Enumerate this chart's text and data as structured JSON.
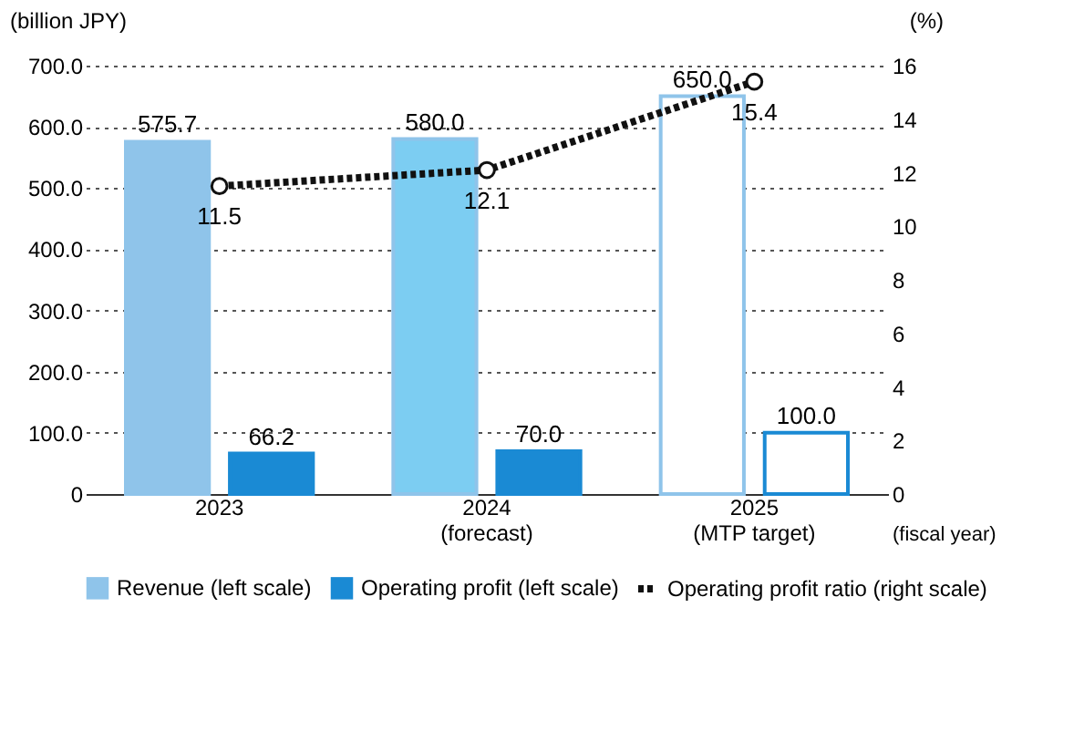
{
  "chart_data": {
    "type": "bar",
    "ylabel": "(billion JPY)",
    "y2label": "(%)",
    "xlabel": "(fiscal year)",
    "categories": [
      "2023",
      "2024\n(forecast)",
      "2025\n(MTP target)"
    ],
    "series": [
      {
        "name": "Revenue (left scale)",
        "color": "#8fc4ea",
        "colors": [
          "#8fc4ea",
          "#7ccdf2",
          "#ffffff"
        ],
        "values": [
          575.7,
          580.0,
          650.0
        ],
        "value_labels": [
          "575.7",
          "580.0",
          "650.0"
        ]
      },
      {
        "name": "Operating profit (left scale)",
        "color": "#1a8ad4",
        "colors": [
          "#1a8ad4",
          "#1a8ad4",
          "#ffffff"
        ],
        "values": [
          66.2,
          70.0,
          100.0
        ],
        "value_labels": [
          "66.2",
          "70.0",
          "100.0"
        ]
      },
      {
        "name": "Operating profit ratio (right scale)",
        "type": "line",
        "axis": "y2",
        "color": "#111111",
        "marker": "circle",
        "line_style": "dotted",
        "values": [
          11.5,
          12.1,
          15.4
        ],
        "value_labels": [
          "11.5",
          "12.1",
          "15.4"
        ]
      }
    ],
    "ylim": [
      0,
      700
    ],
    "yticks": [
      0,
      {
        "value": 100,
        "label": "100.0"
      },
      {
        "value": 200,
        "label": "200.0"
      },
      {
        "value": 300,
        "label": "300.0"
      },
      {
        "value": 400,
        "label": "400.0"
      },
      {
        "value": 500,
        "label": "500.0"
      },
      {
        "value": 600,
        "label": "600.0"
      },
      {
        "value": 700,
        "label": "700.0"
      }
    ],
    "y2lim": [
      0,
      16
    ],
    "y2ticks": [
      0,
      2,
      4,
      6,
      8,
      10,
      12,
      14,
      16
    ],
    "grid": "y",
    "legend": "bottom"
  }
}
